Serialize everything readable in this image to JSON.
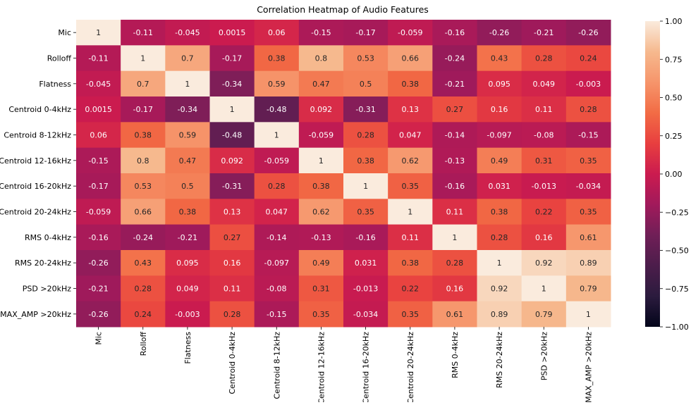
{
  "chart_data": {
    "type": "heatmap",
    "title": "Correlation Heatmap of Audio Features",
    "xlabel": "",
    "ylabel": "",
    "rows": [
      "Mic",
      "Rolloff",
      "Flatness",
      "Centroid 0-4kHz",
      "Centroid 8-12kHz",
      "Centroid 12-16kHz",
      "Centroid 16-20kHz",
      "Centroid 20-24kHz",
      "RMS 0-4kHz",
      "RMS 20-24kHz",
      "PSD >20kHz",
      "MAX_AMP >20kHz"
    ],
    "columns": [
      "Mic",
      "Rolloff",
      "Flatness",
      "Centroid 0-4kHz",
      "Centroid 8-12kHz",
      "Centroid 12-16kHz",
      "Centroid 16-20kHz",
      "Centroid 20-24kHz",
      "RMS 0-4kHz",
      "RMS 20-24kHz",
      "PSD >20kHz",
      "MAX_AMP >20kHz"
    ],
    "values": [
      [
        1,
        -0.11,
        -0.045,
        0.0015,
        0.06,
        -0.15,
        -0.17,
        -0.059,
        -0.16,
        -0.26,
        -0.21,
        -0.26
      ],
      [
        -0.11,
        1,
        0.7,
        -0.17,
        0.38,
        0.8,
        0.53,
        0.66,
        -0.24,
        0.43,
        0.28,
        0.24
      ],
      [
        -0.045,
        0.7,
        1,
        -0.34,
        0.59,
        0.47,
        0.5,
        0.38,
        -0.21,
        0.095,
        0.049,
        -0.003
      ],
      [
        0.0015,
        -0.17,
        -0.34,
        1,
        -0.48,
        0.092,
        -0.31,
        0.13,
        0.27,
        0.16,
        0.11,
        0.28
      ],
      [
        0.06,
        0.38,
        0.59,
        -0.48,
        1,
        -0.059,
        0.28,
        0.047,
        -0.14,
        -0.097,
        -0.08,
        -0.15
      ],
      [
        -0.15,
        0.8,
        0.47,
        0.092,
        -0.059,
        1,
        0.38,
        0.62,
        -0.13,
        0.49,
        0.31,
        0.35
      ],
      [
        -0.17,
        0.53,
        0.5,
        -0.31,
        0.28,
        0.38,
        1,
        0.35,
        -0.16,
        0.031,
        -0.013,
        -0.034
      ],
      [
        -0.059,
        0.66,
        0.38,
        0.13,
        0.047,
        0.62,
        0.35,
        1,
        0.11,
        0.38,
        0.22,
        0.35
      ],
      [
        -0.16,
        -0.24,
        -0.21,
        0.27,
        -0.14,
        -0.13,
        -0.16,
        0.11,
        1,
        0.28,
        0.16,
        0.61
      ],
      [
        -0.26,
        0.43,
        0.095,
        0.16,
        -0.097,
        0.49,
        0.031,
        0.38,
        0.28,
        1,
        0.92,
        0.89
      ],
      [
        -0.21,
        0.28,
        0.049,
        0.11,
        -0.08,
        0.31,
        -0.013,
        0.22,
        0.16,
        0.92,
        1,
        0.79
      ],
      [
        -0.26,
        0.24,
        -0.003,
        0.28,
        -0.15,
        0.35,
        -0.034,
        0.35,
        0.61,
        0.89,
        0.79,
        1
      ]
    ],
    "colorbar": {
      "range": [
        -1,
        1
      ],
      "ticks": [
        "1.00",
        "0.75",
        "0.50",
        "0.25",
        "0.00",
        "−0.25",
        "−0.50",
        "−0.75",
        "−1.00"
      ],
      "tick_values": [
        1,
        0.75,
        0.5,
        0.25,
        0,
        -0.25,
        -0.5,
        -0.75,
        -1
      ]
    },
    "colormap": {
      "name": "rocket",
      "stops": [
        "#03051a",
        "#2b1b3e",
        "#4c1d4b",
        "#701f57",
        "#a11a5b",
        "#cb1b4f",
        "#e83f3f",
        "#f26c45",
        "#f6956b",
        "#f6b98e",
        "#faebdd"
      ]
    },
    "grid": false,
    "legend": "none"
  }
}
